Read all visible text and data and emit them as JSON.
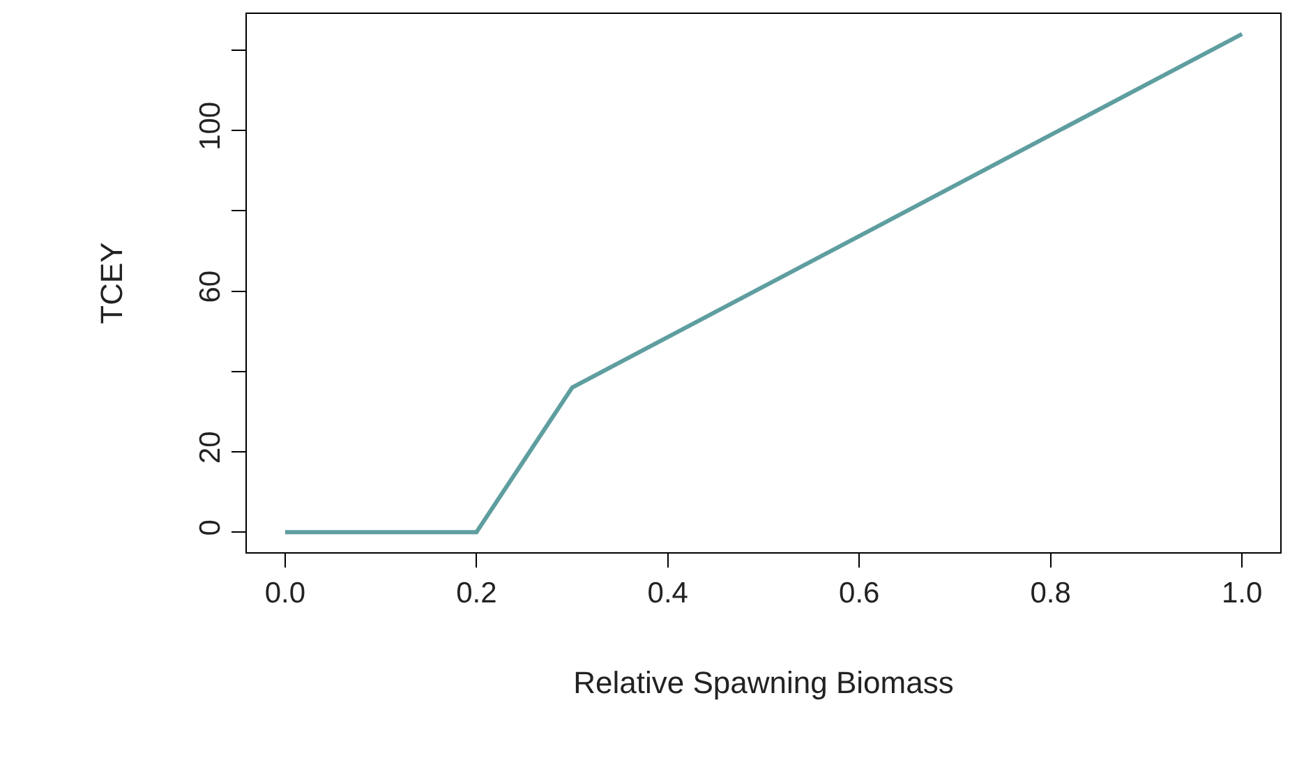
{
  "chart_data": {
    "type": "line",
    "xlabel": "Relative Spawning Biomass",
    "ylabel": "TCEY",
    "x": [
      0,
      0.2,
      0.25,
      0.3,
      1.0
    ],
    "series": [
      {
        "color": "#5f9ea0",
        "values": [
          0,
          0,
          18,
          36,
          124
        ]
      }
    ],
    "xlim": [
      -0.04,
      1.04
    ],
    "xticks": [
      {
        "value": 0,
        "label": "0.0"
      },
      0.2,
      0.4,
      0.6,
      0.8,
      {
        "value": 1,
        "label": "1.0"
      }
    ],
    "ylim": [
      -5,
      129
    ],
    "yticks": [
      0,
      20,
      {
        "value": 40,
        "label": null
      },
      60,
      {
        "value": 80,
        "label": null
      },
      100,
      {
        "value": 120,
        "label": null
      }
    ],
    "marker": "none",
    "line_style": "solid"
  }
}
